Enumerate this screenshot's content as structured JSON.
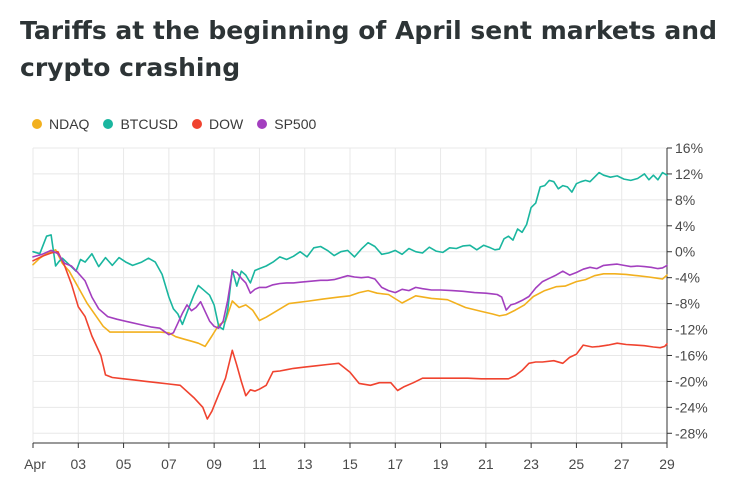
{
  "title": "Tariffs at the beginning of April sent markets and crypto crashing",
  "chart_data": {
    "type": "line",
    "title": "Tariffs at the beginning of April sent markets and crypto crashing",
    "xlabel": "",
    "ylabel": "",
    "x_ticks": [
      "Apr",
      "03",
      "05",
      "07",
      "09",
      "11",
      "13",
      "15",
      "17",
      "19",
      "21",
      "23",
      "25",
      "27",
      "29"
    ],
    "x_range": [
      "Apr 01",
      "Apr 29"
    ],
    "y_ticks": [
      "16%",
      "12%",
      "8%",
      "4%",
      "0%",
      "-4%",
      "-8%",
      "-12%",
      "-16%",
      "-20%",
      "-24%",
      "-28%"
    ],
    "ylim": [
      -29.5,
      16
    ],
    "y_unit": "%",
    "grid": true,
    "legend_position": "top-left",
    "series": [
      {
        "name": "NDAQ",
        "color": "#f2b01e",
        "x": [
          1.0,
          1.3,
          1.6,
          2.0,
          2.3,
          2.6,
          3.0,
          3.4,
          4.1,
          4.4,
          4.7,
          5.3,
          5.8,
          6.3,
          6.6,
          7.0,
          7.3,
          7.7,
          8.0,
          8.3,
          8.6,
          8.9,
          9.2,
          9.5,
          9.8,
          10.1,
          10.4,
          10.7,
          11.0,
          11.3,
          12.3,
          13.2,
          13.8,
          14.5,
          15.0,
          15.4,
          15.8,
          16.2,
          16.7,
          17.3,
          17.9,
          18.6,
          19.3,
          20.1,
          20.8,
          21.3,
          21.6,
          21.9,
          22.3,
          22.7,
          23.1,
          23.6,
          24.1,
          24.5,
          25.0,
          25.4,
          25.8,
          26.2,
          26.7,
          27.2,
          27.7,
          28.2,
          28.6,
          28.8,
          29.0
        ],
        "y": [
          -2.0,
          -1.0,
          -0.3,
          0.3,
          -1.8,
          -3.0,
          -5.5,
          -8.0,
          -11.5,
          -12.4,
          -12.4,
          -12.4,
          -12.4,
          -12.4,
          -12.4,
          -12.5,
          -13.1,
          -13.5,
          -13.8,
          -14.1,
          -14.6,
          -13.0,
          -11.3,
          -10.7,
          -7.6,
          -8.6,
          -8.2,
          -9.0,
          -10.6,
          -10.1,
          -8.0,
          -7.6,
          -7.3,
          -7.0,
          -6.8,
          -6.3,
          -6.0,
          -6.4,
          -6.6,
          -7.9,
          -6.8,
          -7.2,
          -7.4,
          -8.6,
          -9.2,
          -9.6,
          -9.9,
          -9.7,
          -9.0,
          -8.2,
          -6.9,
          -6.0,
          -5.4,
          -5.3,
          -4.6,
          -4.3,
          -3.7,
          -3.4,
          -3.4,
          -3.5,
          -3.7,
          -3.9,
          -4.1,
          -4.2,
          -3.6
        ]
      },
      {
        "name": "BTCUSD",
        "color": "#1ab69f",
        "x": [
          1.0,
          1.3,
          1.6,
          1.8,
          2.0,
          2.15,
          2.3,
          2.6,
          2.9,
          3.1,
          3.3,
          3.6,
          3.9,
          4.2,
          4.5,
          4.8,
          5.1,
          5.4,
          5.8,
          6.1,
          6.4,
          6.7,
          7.0,
          7.2,
          7.4,
          7.6,
          7.9,
          8.1,
          8.3,
          8.5,
          8.8,
          9.0,
          9.2,
          9.4,
          9.6,
          9.8,
          10.0,
          10.2,
          10.4,
          10.6,
          10.8,
          11.0,
          11.3,
          11.6,
          11.9,
          12.2,
          12.5,
          12.8,
          13.1,
          13.4,
          13.7,
          14.0,
          14.3,
          14.6,
          14.9,
          15.2,
          15.5,
          15.8,
          16.1,
          16.4,
          16.7,
          17.0,
          17.3,
          17.6,
          17.9,
          18.2,
          18.5,
          18.8,
          19.1,
          19.4,
          19.7,
          20.0,
          20.3,
          20.6,
          20.9,
          21.2,
          21.4,
          21.6,
          21.8,
          22.0,
          22.2,
          22.4,
          22.6,
          22.8,
          23.0,
          23.2,
          23.4,
          23.6,
          23.8,
          24.0,
          24.2,
          24.4,
          24.6,
          24.8,
          25.0,
          25.2,
          25.4,
          25.6,
          25.8,
          26.0,
          26.2,
          26.5,
          26.8,
          27.1,
          27.4,
          27.7,
          28.0,
          28.2,
          28.4,
          28.6,
          28.8,
          29.0
        ],
        "y": [
          0.0,
          -0.3,
          2.4,
          2.6,
          -2.2,
          -1.5,
          -1.0,
          -2.0,
          -3.0,
          -1.2,
          -1.6,
          -0.3,
          -2.3,
          -0.9,
          -2.1,
          -0.9,
          -1.6,
          -2.1,
          -1.6,
          -1.0,
          -1.6,
          -3.5,
          -7.0,
          -8.8,
          -9.6,
          -11.2,
          -8.5,
          -6.7,
          -5.2,
          -5.8,
          -6.7,
          -8.2,
          -11.5,
          -12.0,
          -9.0,
          -2.8,
          -5.3,
          -3.0,
          -3.6,
          -4.8,
          -2.9,
          -2.6,
          -2.2,
          -1.6,
          -0.8,
          -1.2,
          -0.7,
          0.0,
          -0.8,
          0.6,
          0.8,
          0.2,
          -0.6,
          0.0,
          0.2,
          -0.8,
          0.4,
          1.4,
          0.8,
          -0.4,
          -0.2,
          0.2,
          -0.4,
          0.5,
          0.0,
          -0.2,
          0.7,
          0.1,
          -0.1,
          0.6,
          0.5,
          0.9,
          1.0,
          0.3,
          1.0,
          0.6,
          0.3,
          0.4,
          2.0,
          2.4,
          1.8,
          3.5,
          3.0,
          4.2,
          6.8,
          7.5,
          10.0,
          10.2,
          11.0,
          10.8,
          9.7,
          10.2,
          10.0,
          9.2,
          10.5,
          10.8,
          11.0,
          10.8,
          11.5,
          12.2,
          11.8,
          11.5,
          11.7,
          11.2,
          11.0,
          11.3,
          12.0,
          11.1,
          11.8,
          11.1,
          12.2,
          11.8
        ]
      },
      {
        "name": "DOW",
        "color": "#f0432f",
        "x": [
          1.0,
          1.4,
          1.8,
          2.1,
          2.4,
          2.7,
          3.0,
          3.3,
          3.6,
          4.0,
          4.2,
          4.5,
          5.0,
          5.5,
          6.0,
          6.5,
          7.0,
          7.5,
          8.1,
          8.5,
          8.7,
          8.9,
          9.2,
          9.5,
          9.8,
          10.0,
          10.2,
          10.4,
          10.6,
          10.8,
          11.0,
          11.3,
          11.6,
          11.9,
          12.2,
          12.5,
          13.0,
          13.5,
          14.0,
          14.5,
          15.0,
          15.4,
          15.9,
          16.3,
          16.8,
          17.1,
          17.4,
          17.8,
          18.2,
          18.6,
          19.0,
          19.6,
          20.2,
          20.8,
          21.4,
          22.0,
          22.3,
          22.6,
          22.9,
          23.2,
          23.5,
          24.0,
          24.4,
          24.7,
          25.0,
          25.3,
          25.7,
          26.0,
          26.4,
          26.8,
          27.2,
          27.6,
          28.0,
          28.4,
          28.7,
          28.9,
          29.0
        ],
        "y": [
          -1.4,
          -0.7,
          -0.2,
          0.0,
          -2.2,
          -5.0,
          -8.5,
          -10.0,
          -13.0,
          -16.0,
          -19.0,
          -19.4,
          -19.6,
          -19.8,
          -20.0,
          -20.2,
          -20.4,
          -20.6,
          -22.5,
          -24.0,
          -25.8,
          -24.6,
          -22.0,
          -19.5,
          -15.2,
          -17.5,
          -20.0,
          -22.2,
          -21.3,
          -21.5,
          -21.2,
          -20.6,
          -18.5,
          -18.4,
          -18.2,
          -18.0,
          -17.8,
          -17.6,
          -17.4,
          -17.2,
          -18.6,
          -20.3,
          -20.6,
          -20.2,
          -20.2,
          -21.4,
          -20.8,
          -20.2,
          -19.5,
          -19.5,
          -19.5,
          -19.5,
          -19.5,
          -19.6,
          -19.6,
          -19.6,
          -19.1,
          -18.3,
          -17.2,
          -17.0,
          -17.0,
          -16.8,
          -17.2,
          -16.3,
          -15.8,
          -14.4,
          -14.7,
          -14.6,
          -14.4,
          -14.1,
          -14.3,
          -14.4,
          -14.5,
          -14.7,
          -14.8,
          -14.6,
          -14.2
        ]
      },
      {
        "name": "SP500",
        "color": "#a33fbf",
        "x": [
          1.0,
          1.4,
          1.8,
          2.1,
          2.4,
          2.7,
          3.0,
          3.3,
          3.6,
          3.9,
          4.3,
          4.7,
          5.2,
          5.7,
          6.2,
          6.6,
          7.0,
          7.2,
          7.4,
          7.6,
          7.8,
          8.0,
          8.2,
          8.4,
          8.6,
          8.8,
          9.0,
          9.2,
          9.4,
          9.6,
          9.8,
          10.0,
          10.2,
          10.4,
          10.6,
          10.8,
          11.0,
          11.3,
          11.6,
          11.9,
          12.2,
          12.5,
          12.8,
          13.1,
          13.4,
          13.7,
          14.0,
          14.3,
          14.6,
          14.9,
          15.2,
          15.5,
          15.8,
          16.1,
          16.4,
          16.7,
          17.0,
          17.3,
          17.6,
          17.9,
          18.2,
          18.6,
          19.0,
          19.5,
          20.0,
          20.5,
          21.0,
          21.3,
          21.5,
          21.7,
          21.9,
          22.1,
          22.3,
          22.6,
          22.9,
          23.2,
          23.5,
          23.8,
          24.1,
          24.4,
          24.7,
          25.0,
          25.3,
          25.6,
          25.9,
          26.2,
          26.5,
          26.8,
          27.1,
          27.4,
          27.7,
          28.0,
          28.3,
          28.6,
          28.8,
          29.0
        ],
        "y": [
          -0.8,
          -0.4,
          0.2,
          -0.3,
          -1.8,
          -2.2,
          -3.3,
          -4.5,
          -7.0,
          -8.8,
          -10.0,
          -10.4,
          -10.8,
          -11.2,
          -11.6,
          -11.8,
          -12.8,
          -12.5,
          -11.0,
          -9.5,
          -8.2,
          -9.1,
          -8.6,
          -7.7,
          -9.2,
          -10.7,
          -11.5,
          -11.8,
          -10.7,
          -7.5,
          -3.0,
          -3.2,
          -4.1,
          -4.8,
          -6.4,
          -5.8,
          -5.5,
          -5.5,
          -5.1,
          -4.9,
          -4.8,
          -4.8,
          -4.7,
          -4.6,
          -4.5,
          -4.4,
          -4.4,
          -4.3,
          -4.0,
          -3.7,
          -3.9,
          -4.0,
          -3.9,
          -4.2,
          -5.5,
          -6.0,
          -6.3,
          -5.8,
          -6.0,
          -5.5,
          -5.7,
          -5.9,
          -5.9,
          -6.0,
          -6.1,
          -6.3,
          -6.4,
          -6.5,
          -6.6,
          -7.0,
          -9.0,
          -8.2,
          -8.0,
          -7.5,
          -6.9,
          -5.6,
          -4.6,
          -4.1,
          -3.6,
          -3.0,
          -3.6,
          -3.2,
          -2.7,
          -2.4,
          -2.6,
          -2.1,
          -2.0,
          -1.9,
          -2.1,
          -2.3,
          -2.2,
          -2.3,
          -2.4,
          -2.6,
          -2.5,
          -2.1
        ]
      }
    ]
  }
}
